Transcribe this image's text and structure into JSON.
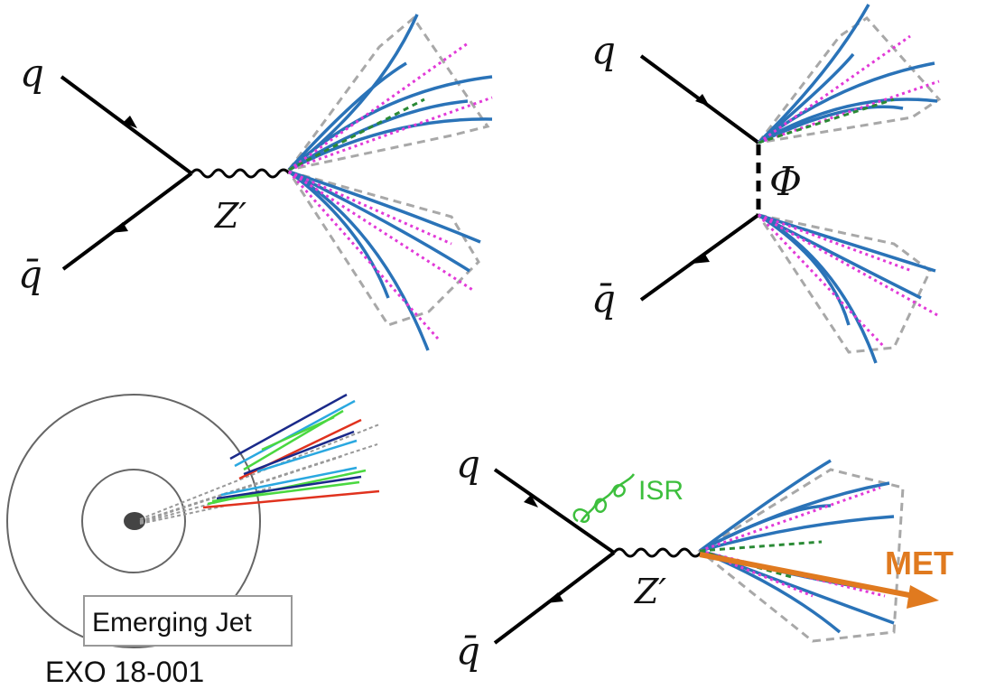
{
  "colors": {
    "fermion": "#000000",
    "blue_track": "#2a73b8",
    "magenta_track": "#e23ad8",
    "green_track": "#2a8a35",
    "cone": "#a8a8a8",
    "isr": "#3dbf3d",
    "met": "#e07a1f",
    "circle": "#666666",
    "dark_track": "#1a2a8a",
    "red_track": "#e0321e",
    "cyan_track": "#2aa8e0",
    "light_green_track": "#4ad840"
  },
  "panel_a": {
    "quark_label": "q",
    "antiquark_label": "q̄",
    "mediator_label": "Z′"
  },
  "panel_b": {
    "quark_label": "q",
    "antiquark_label": "q̄",
    "mediator_label": "Φ"
  },
  "panel_c": {
    "box_label": "Emerging Jet",
    "analysis_label": "EXO 18-001"
  },
  "panel_d": {
    "quark_label": "q",
    "antiquark_label": "q̄",
    "mediator_label": "Z′",
    "isr_label": "ISR",
    "met_label": "MET"
  }
}
